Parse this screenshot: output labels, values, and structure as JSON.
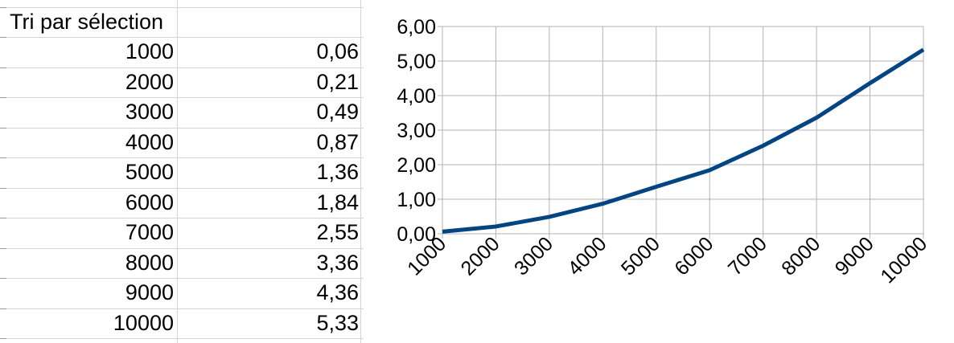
{
  "sheet": {
    "title": "Tri par sélection",
    "rows": [
      {
        "n": "1000",
        "t": "0,06"
      },
      {
        "n": "2000",
        "t": "0,21"
      },
      {
        "n": "3000",
        "t": "0,49"
      },
      {
        "n": "4000",
        "t": "0,87"
      },
      {
        "n": "5000",
        "t": "1,36"
      },
      {
        "n": "6000",
        "t": "1,84"
      },
      {
        "n": "7000",
        "t": "2,55"
      },
      {
        "n": "8000",
        "t": "3,36"
      },
      {
        "n": "9000",
        "t": "4,36"
      },
      {
        "n": "10000",
        "t": "5,33"
      }
    ]
  },
  "chart_data": {
    "type": "line",
    "categories": [
      "1000",
      "2000",
      "3000",
      "4000",
      "5000",
      "6000",
      "7000",
      "8000",
      "9000",
      "10000"
    ],
    "series": [
      {
        "values": [
          0.06,
          0.21,
          0.49,
          0.87,
          1.36,
          1.84,
          2.55,
          3.36,
          4.36,
          5.33
        ]
      }
    ],
    "yticks": [
      "0,00",
      "1,00",
      "2,00",
      "3,00",
      "4,00",
      "5,00",
      "6,00"
    ],
    "ylim": [
      0,
      6
    ],
    "grid": true,
    "title": "",
    "xlabel": "",
    "ylabel": "",
    "line_color": "#004586"
  }
}
